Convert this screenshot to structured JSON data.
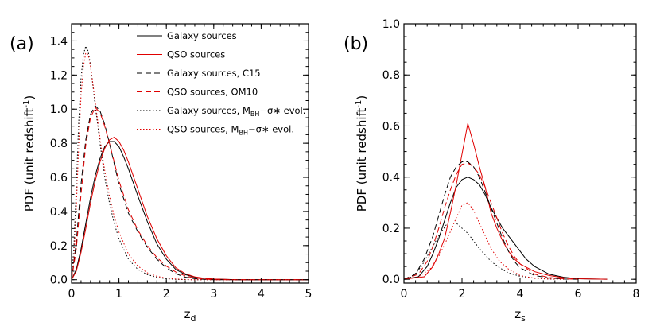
{
  "chart_data": [
    {
      "type": "line",
      "panel_label": "(a)",
      "xlabel": {
        "main": "z",
        "sub": "d"
      },
      "ylabel": {
        "main": "PDF (unit redshift",
        "sup": "-1",
        "tail": ")"
      },
      "xlim": [
        0,
        5
      ],
      "ylim": [
        -0.02,
        1.5
      ],
      "xticks": [
        0,
        1,
        2,
        3,
        4,
        5
      ],
      "xtick_labels": [
        "0",
        "1",
        "2",
        "3",
        "4",
        "5"
      ],
      "yticks": [
        0.0,
        0.2,
        0.4,
        0.6,
        0.8,
        1.0,
        1.2,
        1.4
      ],
      "ytick_labels": [
        "0.0",
        "0.2",
        "0.4",
        "0.6",
        "0.8",
        "1.0",
        "1.2",
        "1.4"
      ],
      "legend_position": "top-right",
      "legend": [
        {
          "text": "Galaxy sources",
          "color": "#000000",
          "dash": "solid"
        },
        {
          "text": "QSO sources",
          "color": "#e00000",
          "dash": "solid"
        },
        {
          "text": "Galaxy sources, C15",
          "color": "#000000",
          "dash": "dashed"
        },
        {
          "text": "QSO sources, OM10",
          "color": "#e00000",
          "dash": "dashed"
        },
        {
          "text": "Galaxy sources, M",
          "sub": "BH",
          "tail": "−σ∗ evol.",
          "color": "#000000",
          "dash": "dotted"
        },
        {
          "text": "QSO sources, M",
          "sub": "BH",
          "tail": "−σ∗ evol.",
          "color": "#e00000",
          "dash": "dotted"
        }
      ],
      "series": [
        {
          "color": "#000000",
          "dash": "solid",
          "x": [
            0,
            0.1,
            0.2,
            0.3,
            0.4,
            0.5,
            0.6,
            0.7,
            0.8,
            0.9,
            1.0,
            1.1,
            1.2,
            1.4,
            1.6,
            1.8,
            2.0,
            2.2,
            2.4,
            2.6,
            2.8,
            3.0,
            3.5,
            5.0
          ],
          "y": [
            0,
            0.06,
            0.18,
            0.33,
            0.48,
            0.61,
            0.71,
            0.78,
            0.81,
            0.81,
            0.78,
            0.72,
            0.65,
            0.49,
            0.34,
            0.21,
            0.12,
            0.06,
            0.03,
            0.015,
            0.008,
            0.004,
            0.0,
            0.0
          ]
        },
        {
          "color": "#e00000",
          "dash": "solid",
          "x": [
            0,
            0.1,
            0.2,
            0.3,
            0.4,
            0.5,
            0.6,
            0.7,
            0.8,
            0.9,
            1.0,
            1.1,
            1.2,
            1.4,
            1.6,
            1.8,
            2.0,
            2.2,
            2.4,
            2.6,
            2.8,
            3.0,
            3.5,
            5.0
          ],
          "y": [
            0,
            0.05,
            0.16,
            0.3,
            0.45,
            0.58,
            0.69,
            0.77,
            0.82,
            0.835,
            0.81,
            0.76,
            0.69,
            0.53,
            0.37,
            0.24,
            0.14,
            0.07,
            0.035,
            0.017,
            0.008,
            0.004,
            0.0,
            0.0
          ]
        },
        {
          "color": "#000000",
          "dash": "dashed",
          "x": [
            0,
            0.1,
            0.2,
            0.3,
            0.4,
            0.5,
            0.6,
            0.7,
            0.8,
            0.9,
            1.0,
            1.2,
            1.4,
            1.6,
            1.8,
            2.0,
            2.2,
            2.4,
            2.6,
            2.8,
            3.0,
            5.0
          ],
          "y": [
            0,
            0.22,
            0.56,
            0.82,
            0.97,
            1.02,
            0.99,
            0.91,
            0.8,
            0.68,
            0.56,
            0.39,
            0.28,
            0.19,
            0.12,
            0.07,
            0.035,
            0.015,
            0.006,
            0.002,
            0.0,
            0.0
          ]
        },
        {
          "color": "#e00000",
          "dash": "dashed",
          "x": [
            0,
            0.1,
            0.2,
            0.3,
            0.4,
            0.5,
            0.6,
            0.7,
            0.8,
            0.9,
            1.0,
            1.2,
            1.4,
            1.6,
            1.8,
            2.0,
            2.2,
            2.4,
            2.6,
            2.8,
            3.0,
            5.0
          ],
          "y": [
            0,
            0.18,
            0.5,
            0.79,
            0.95,
            1.01,
            0.98,
            0.9,
            0.8,
            0.69,
            0.58,
            0.41,
            0.29,
            0.2,
            0.13,
            0.08,
            0.045,
            0.022,
            0.01,
            0.004,
            0.0,
            0.0
          ]
        },
        {
          "color": "#000000",
          "dash": "dotted",
          "x": [
            0,
            0.05,
            0.1,
            0.15,
            0.2,
            0.25,
            0.3,
            0.35,
            0.4,
            0.45,
            0.5,
            0.6,
            0.7,
            0.8,
            0.9,
            1.0,
            1.2,
            1.4,
            1.6,
            1.8,
            2.0,
            2.2,
            2.5,
            5.0
          ],
          "y": [
            0,
            0.2,
            0.55,
            0.92,
            1.18,
            1.32,
            1.37,
            1.34,
            1.26,
            1.14,
            1.02,
            0.8,
            0.6,
            0.45,
            0.33,
            0.24,
            0.12,
            0.06,
            0.03,
            0.014,
            0.006,
            0.002,
            0.0,
            0.0
          ]
        },
        {
          "color": "#e00000",
          "dash": "dotted",
          "x": [
            0,
            0.05,
            0.1,
            0.15,
            0.2,
            0.25,
            0.3,
            0.35,
            0.4,
            0.45,
            0.5,
            0.6,
            0.7,
            0.8,
            0.9,
            1.0,
            1.2,
            1.4,
            1.6,
            1.8,
            2.0,
            2.2,
            2.5,
            5.0
          ],
          "y": [
            0,
            0.12,
            0.42,
            0.78,
            1.08,
            1.25,
            1.33,
            1.32,
            1.25,
            1.15,
            1.04,
            0.83,
            0.64,
            0.49,
            0.37,
            0.28,
            0.15,
            0.08,
            0.04,
            0.02,
            0.009,
            0.004,
            0.0,
            0.0
          ]
        }
      ]
    },
    {
      "type": "line",
      "panel_label": "(b)",
      "xlabel": {
        "main": "z",
        "sub": "s"
      },
      "ylabel": {
        "main": "PDF (unit redshift",
        "sup": "-1",
        "tail": ")"
      },
      "xlim": [
        0,
        8
      ],
      "ylim": [
        -0.015,
        1.0
      ],
      "xticks": [
        0,
        2,
        4,
        6,
        8
      ],
      "xtick_labels": [
        "0",
        "2",
        "4",
        "6",
        "8"
      ],
      "yticks": [
        0.0,
        0.2,
        0.4,
        0.6,
        0.8,
        1.0
      ],
      "ytick_labels": [
        "0.0",
        "0.2",
        "0.4",
        "0.6",
        "0.8",
        "1.0"
      ],
      "series": [
        {
          "color": "#000000",
          "dash": "solid",
          "x": [
            0,
            0.5,
            0.8,
            1.0,
            1.2,
            1.4,
            1.6,
            1.8,
            2.0,
            2.2,
            2.4,
            2.6,
            2.8,
            3.0,
            3.2,
            3.4,
            3.6,
            3.8,
            4.0,
            4.2,
            4.5,
            5.0,
            5.5,
            6.0,
            7.0
          ],
          "y": [
            0,
            0.01,
            0.05,
            0.1,
            0.16,
            0.23,
            0.3,
            0.36,
            0.39,
            0.4,
            0.39,
            0.37,
            0.33,
            0.28,
            0.24,
            0.2,
            0.17,
            0.14,
            0.11,
            0.08,
            0.05,
            0.02,
            0.008,
            0.002,
            0.0
          ]
        },
        {
          "color": "#e00000",
          "dash": "solid",
          "x": [
            0,
            0.7,
            1.0,
            1.2,
            1.4,
            1.6,
            1.8,
            2.0,
            2.2,
            2.4,
            2.6,
            2.8,
            3.0,
            3.2,
            3.4,
            3.6,
            3.8,
            4.0,
            4.5,
            5.0,
            5.5,
            6.0,
            7.0
          ],
          "y": [
            0,
            0.01,
            0.05,
            0.1,
            0.16,
            0.26,
            0.37,
            0.49,
            0.61,
            0.53,
            0.44,
            0.36,
            0.26,
            0.2,
            0.15,
            0.11,
            0.08,
            0.06,
            0.03,
            0.015,
            0.006,
            0.002,
            0.0
          ]
        },
        {
          "color": "#000000",
          "dash": "dashed",
          "x": [
            0,
            0.4,
            0.7,
            1.0,
            1.2,
            1.4,
            1.6,
            1.8,
            2.0,
            2.2,
            2.4,
            2.6,
            2.8,
            3.0,
            3.2,
            3.4,
            3.6,
            3.8,
            4.0,
            4.5,
            5.0,
            5.5,
            6.0
          ],
          "y": [
            0,
            0.02,
            0.08,
            0.17,
            0.25,
            0.33,
            0.4,
            0.44,
            0.46,
            0.46,
            0.44,
            0.4,
            0.34,
            0.28,
            0.22,
            0.16,
            0.11,
            0.07,
            0.045,
            0.015,
            0.005,
            0.001,
            0.0
          ]
        },
        {
          "color": "#e00000",
          "dash": "dashed",
          "x": [
            0,
            0.5,
            0.8,
            1.0,
            1.2,
            1.4,
            1.6,
            1.8,
            2.0,
            2.2,
            2.4,
            2.6,
            2.8,
            3.0,
            3.2,
            3.4,
            3.6,
            3.8,
            4.0,
            4.5,
            5.0,
            5.5,
            6.0
          ],
          "y": [
            0,
            0.02,
            0.07,
            0.13,
            0.2,
            0.28,
            0.35,
            0.41,
            0.45,
            0.455,
            0.44,
            0.41,
            0.36,
            0.3,
            0.24,
            0.18,
            0.13,
            0.09,
            0.06,
            0.02,
            0.007,
            0.002,
            0.0
          ]
        },
        {
          "color": "#000000",
          "dash": "dotted",
          "x": [
            0,
            0.3,
            0.6,
            0.9,
            1.2,
            1.5,
            1.8,
            2.0,
            2.2,
            2.4,
            2.6,
            2.8,
            3.0,
            3.3,
            3.6,
            4.0,
            4.5,
            5.0,
            5.5
          ],
          "y": [
            0,
            0.01,
            0.05,
            0.11,
            0.17,
            0.22,
            0.22,
            0.2,
            0.18,
            0.15,
            0.12,
            0.095,
            0.07,
            0.045,
            0.025,
            0.012,
            0.004,
            0.001,
            0.0
          ]
        },
        {
          "color": "#e00000",
          "dash": "dotted",
          "x": [
            0,
            0.5,
            0.9,
            1.2,
            1.5,
            1.8,
            2.0,
            2.2,
            2.4,
            2.6,
            2.8,
            3.0,
            3.3,
            3.6,
            4.0,
            4.5,
            5.0,
            5.5
          ],
          "y": [
            0,
            0.01,
            0.04,
            0.09,
            0.16,
            0.24,
            0.29,
            0.3,
            0.27,
            0.22,
            0.17,
            0.12,
            0.07,
            0.04,
            0.015,
            0.004,
            0.001,
            0.0
          ]
        }
      ]
    }
  ]
}
